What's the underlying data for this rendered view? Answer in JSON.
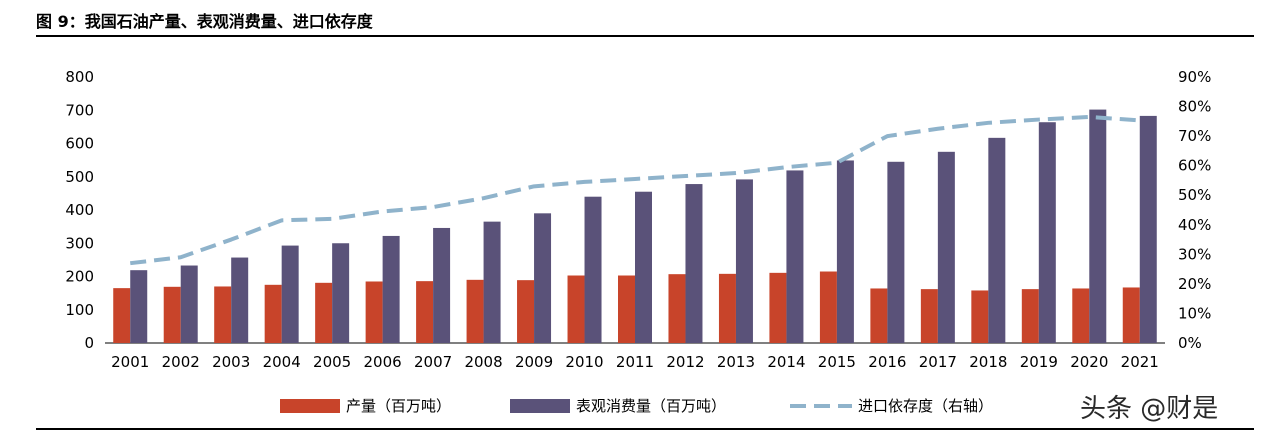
{
  "title": "图 9：我国石油产量、表观消费量、进口依存度",
  "watermark": "头条 @财是",
  "chart_data": {
    "type": "bar",
    "categories": [
      "2001",
      "2002",
      "2003",
      "2004",
      "2005",
      "2006",
      "2007",
      "2008",
      "2009",
      "2010",
      "2011",
      "2012",
      "2013",
      "2014",
      "2015",
      "2016",
      "2017",
      "2018",
      "2019",
      "2020",
      "2021"
    ],
    "series": [
      {
        "name": "产量（百万吨）",
        "type": "bar",
        "axis": "left",
        "color": "#C8442A",
        "values": [
          165,
          169,
          170,
          175,
          181,
          185,
          186,
          190,
          189,
          203,
          203,
          207,
          208,
          211,
          215,
          164,
          162,
          158,
          162,
          164,
          167
        ]
      },
      {
        "name": "表观消费量（百万吨）",
        "type": "bar",
        "axis": "left",
        "color": "#5A5279",
        "values": [
          219,
          233,
          257,
          293,
          300,
          322,
          346,
          365,
          390,
          440,
          455,
          478,
          492,
          519,
          549,
          545,
          575,
          617,
          664,
          702,
          683
        ]
      },
      {
        "name": "进口依存度（右轴）",
        "type": "line",
        "axis": "right",
        "style": "dashed",
        "color": "#8FB3CB",
        "values": [
          0.27,
          0.29,
          0.35,
          0.415,
          0.42,
          0.445,
          0.46,
          0.49,
          0.53,
          0.545,
          0.555,
          0.565,
          0.575,
          0.595,
          0.61,
          0.7,
          0.725,
          0.745,
          0.756,
          0.765,
          0.753
        ]
      }
    ],
    "left_axis": {
      "min": 0,
      "max": 800,
      "ticks": [
        "0",
        "100",
        "200",
        "300",
        "400",
        "500",
        "600",
        "700",
        "800"
      ]
    },
    "right_axis": {
      "min": 0,
      "max": 0.9,
      "ticks": [
        "0%",
        "10%",
        "20%",
        "30%",
        "40%",
        "50%",
        "60%",
        "70%",
        "80%",
        "90%"
      ]
    },
    "grid": false,
    "legend_position": "bottom"
  }
}
